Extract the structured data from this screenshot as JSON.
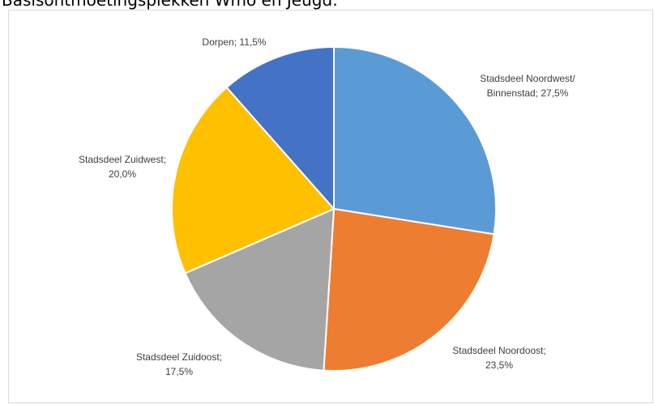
{
  "title": "Basisontmoetingsplekken Wmo en Jeugd:",
  "chart_data": {
    "type": "pie",
    "title": "Basisontmoetingsplekken Wmo en Jeugd:",
    "slices": [
      {
        "label_lines": [
          "Stadsdeel Noordwest/",
          "Binnenstad; 27,5%"
        ],
        "name": "Stadsdeel Noordwest/ Binnenstad",
        "value": 27.5,
        "color": "#5b9bd5"
      },
      {
        "label_lines": [
          "Stadsdeel Noordoost;",
          "23,5%"
        ],
        "name": "Stadsdeel Noordoost",
        "value": 23.5,
        "color": "#ed7d31"
      },
      {
        "label_lines": [
          "Stadsdeel Zuidoost;",
          "17,5%"
        ],
        "name": "Stadsdeel Zuidoost",
        "value": 17.5,
        "color": "#a5a5a5"
      },
      {
        "label_lines": [
          "Stadsdeel Zuidwest;",
          "20,0%"
        ],
        "name": "Stadsdeel Zuidwest",
        "value": 20.0,
        "color": "#ffc000"
      },
      {
        "label_lines": [
          "Dorpen; 11,5%"
        ],
        "name": "Dorpen",
        "value": 11.5,
        "color": "#4472c4"
      }
    ],
    "start_angle": "12 o'clock",
    "direction": "clockwise",
    "legend": "none"
  }
}
